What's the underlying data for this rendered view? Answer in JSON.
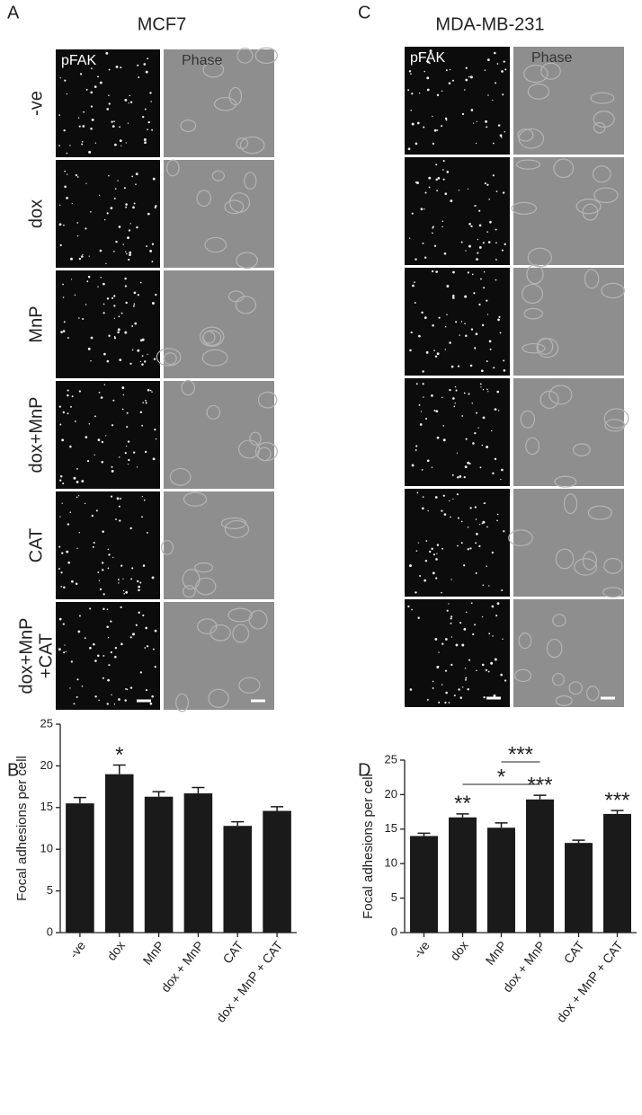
{
  "panels": [
    {
      "label": "A",
      "title": "MCF7",
      "columns": [
        "pFAK",
        "Phase"
      ],
      "rows": [
        "-ve",
        "dox",
        "MnP",
        "dox+MnP",
        "CAT",
        [
          "dox+MnP",
          "+CAT"
        ]
      ]
    },
    {
      "label": "C",
      "title": "MDA-MB-231",
      "columns": [
        "pFAK",
        "Phase"
      ]
    }
  ],
  "chart_data": [
    {
      "type": "bar",
      "label": "B",
      "y_label": "Focal adhesions per cell",
      "categories": [
        "-ve",
        "dox",
        "MnP",
        "dox + MnP",
        "CAT",
        "dox + MnP + CAT"
      ],
      "series": [
        {
          "color": "#1a1a1a",
          "values": [
            15.5,
            19,
            16.3,
            16.7,
            12.8,
            14.6
          ],
          "errors": [
            0.7,
            1.1,
            0.6,
            0.7,
            0.5,
            0.5
          ]
        }
      ],
      "ylim": [
        0,
        25
      ],
      "yticks": [
        0,
        5,
        10,
        15,
        20,
        25
      ],
      "annotations": [
        {
          "text": "*",
          "categories": [
            "dox"
          ]
        }
      ]
    },
    {
      "type": "bar",
      "label": "D",
      "y_label": "Focal adhesions per cell",
      "categories": [
        "-ve",
        "dox",
        "MnP",
        "dox + MnP",
        "CAT",
        "dox + MnP + CAT"
      ],
      "series": [
        {
          "color": "#1a1a1a",
          "values": [
            14,
            16.7,
            15.2,
            19.3,
            13,
            17.2
          ],
          "errors": [
            0.4,
            0.5,
            0.7,
            0.6,
            0.4,
            0.5
          ]
        }
      ],
      "ylim": [
        0,
        25
      ],
      "yticks": [
        0,
        5,
        10,
        15,
        20,
        25
      ],
      "annotations": [
        {
          "text": "**",
          "categories": [
            "dox"
          ]
        },
        {
          "text": "***",
          "categories": [
            "dox + MnP"
          ]
        },
        {
          "text": "***",
          "categories": [
            "dox + MnP + CAT"
          ]
        },
        {
          "text": "*",
          "categories": [
            "dox",
            "dox + MnP"
          ]
        },
        {
          "text": "***",
          "categories": [
            "MnP",
            "dox + MnP"
          ]
        }
      ]
    }
  ]
}
